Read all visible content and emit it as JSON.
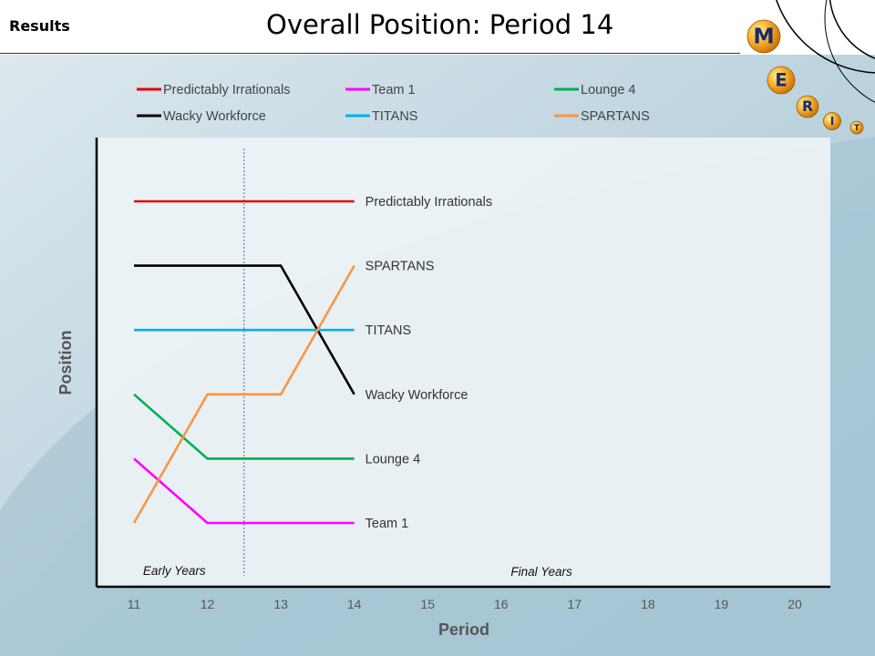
{
  "header": {
    "section_label": "Results",
    "title": "Overall Position: Period 14"
  },
  "logo": {
    "letters": [
      "M",
      "E",
      "R",
      "I",
      "T"
    ],
    "ball_color": "#f0a020",
    "letter_color": "#1a2a6c"
  },
  "chart_data": {
    "type": "line",
    "title": "Overall Position: Period 14",
    "xlabel": "Period",
    "ylabel": "Position",
    "x_ticks": [
      11,
      12,
      13,
      14,
      15,
      16,
      17,
      18,
      19,
      20
    ],
    "xlim": [
      11,
      20
    ],
    "ylim": [
      1,
      6
    ],
    "y_inverted": true,
    "grid": false,
    "legend_position": "top",
    "divider_x": 12.5,
    "annotations": [
      {
        "text": "Early Years",
        "x": 11.5
      },
      {
        "text": "Final Years",
        "x": 16.55
      }
    ],
    "series": [
      {
        "name": "Predictably Irrationals",
        "color": "#e00000",
        "x": [
          11,
          12,
          13,
          14
        ],
        "y": [
          1,
          1,
          1,
          1
        ]
      },
      {
        "name": "Wacky Workforce",
        "color": "#000000",
        "x": [
          11,
          12,
          13,
          14
        ],
        "y": [
          2,
          2,
          2,
          4
        ]
      },
      {
        "name": "Team 1",
        "color": "#ff00ff",
        "x": [
          11,
          12,
          13,
          14
        ],
        "y": [
          5,
          6,
          6,
          6
        ]
      },
      {
        "name": "TITANS",
        "color": "#00b0f0",
        "x": [
          11,
          12,
          13,
          14
        ],
        "y": [
          3,
          3,
          3,
          3
        ]
      },
      {
        "name": "Lounge 4",
        "color": "#00b050",
        "x": [
          11,
          12,
          13,
          14
        ],
        "y": [
          4,
          5,
          5,
          5
        ]
      },
      {
        "name": "SPARTANS",
        "color": "#f79646",
        "x": [
          11,
          12,
          13,
          14
        ],
        "y": [
          6,
          4,
          4,
          2
        ]
      }
    ]
  }
}
